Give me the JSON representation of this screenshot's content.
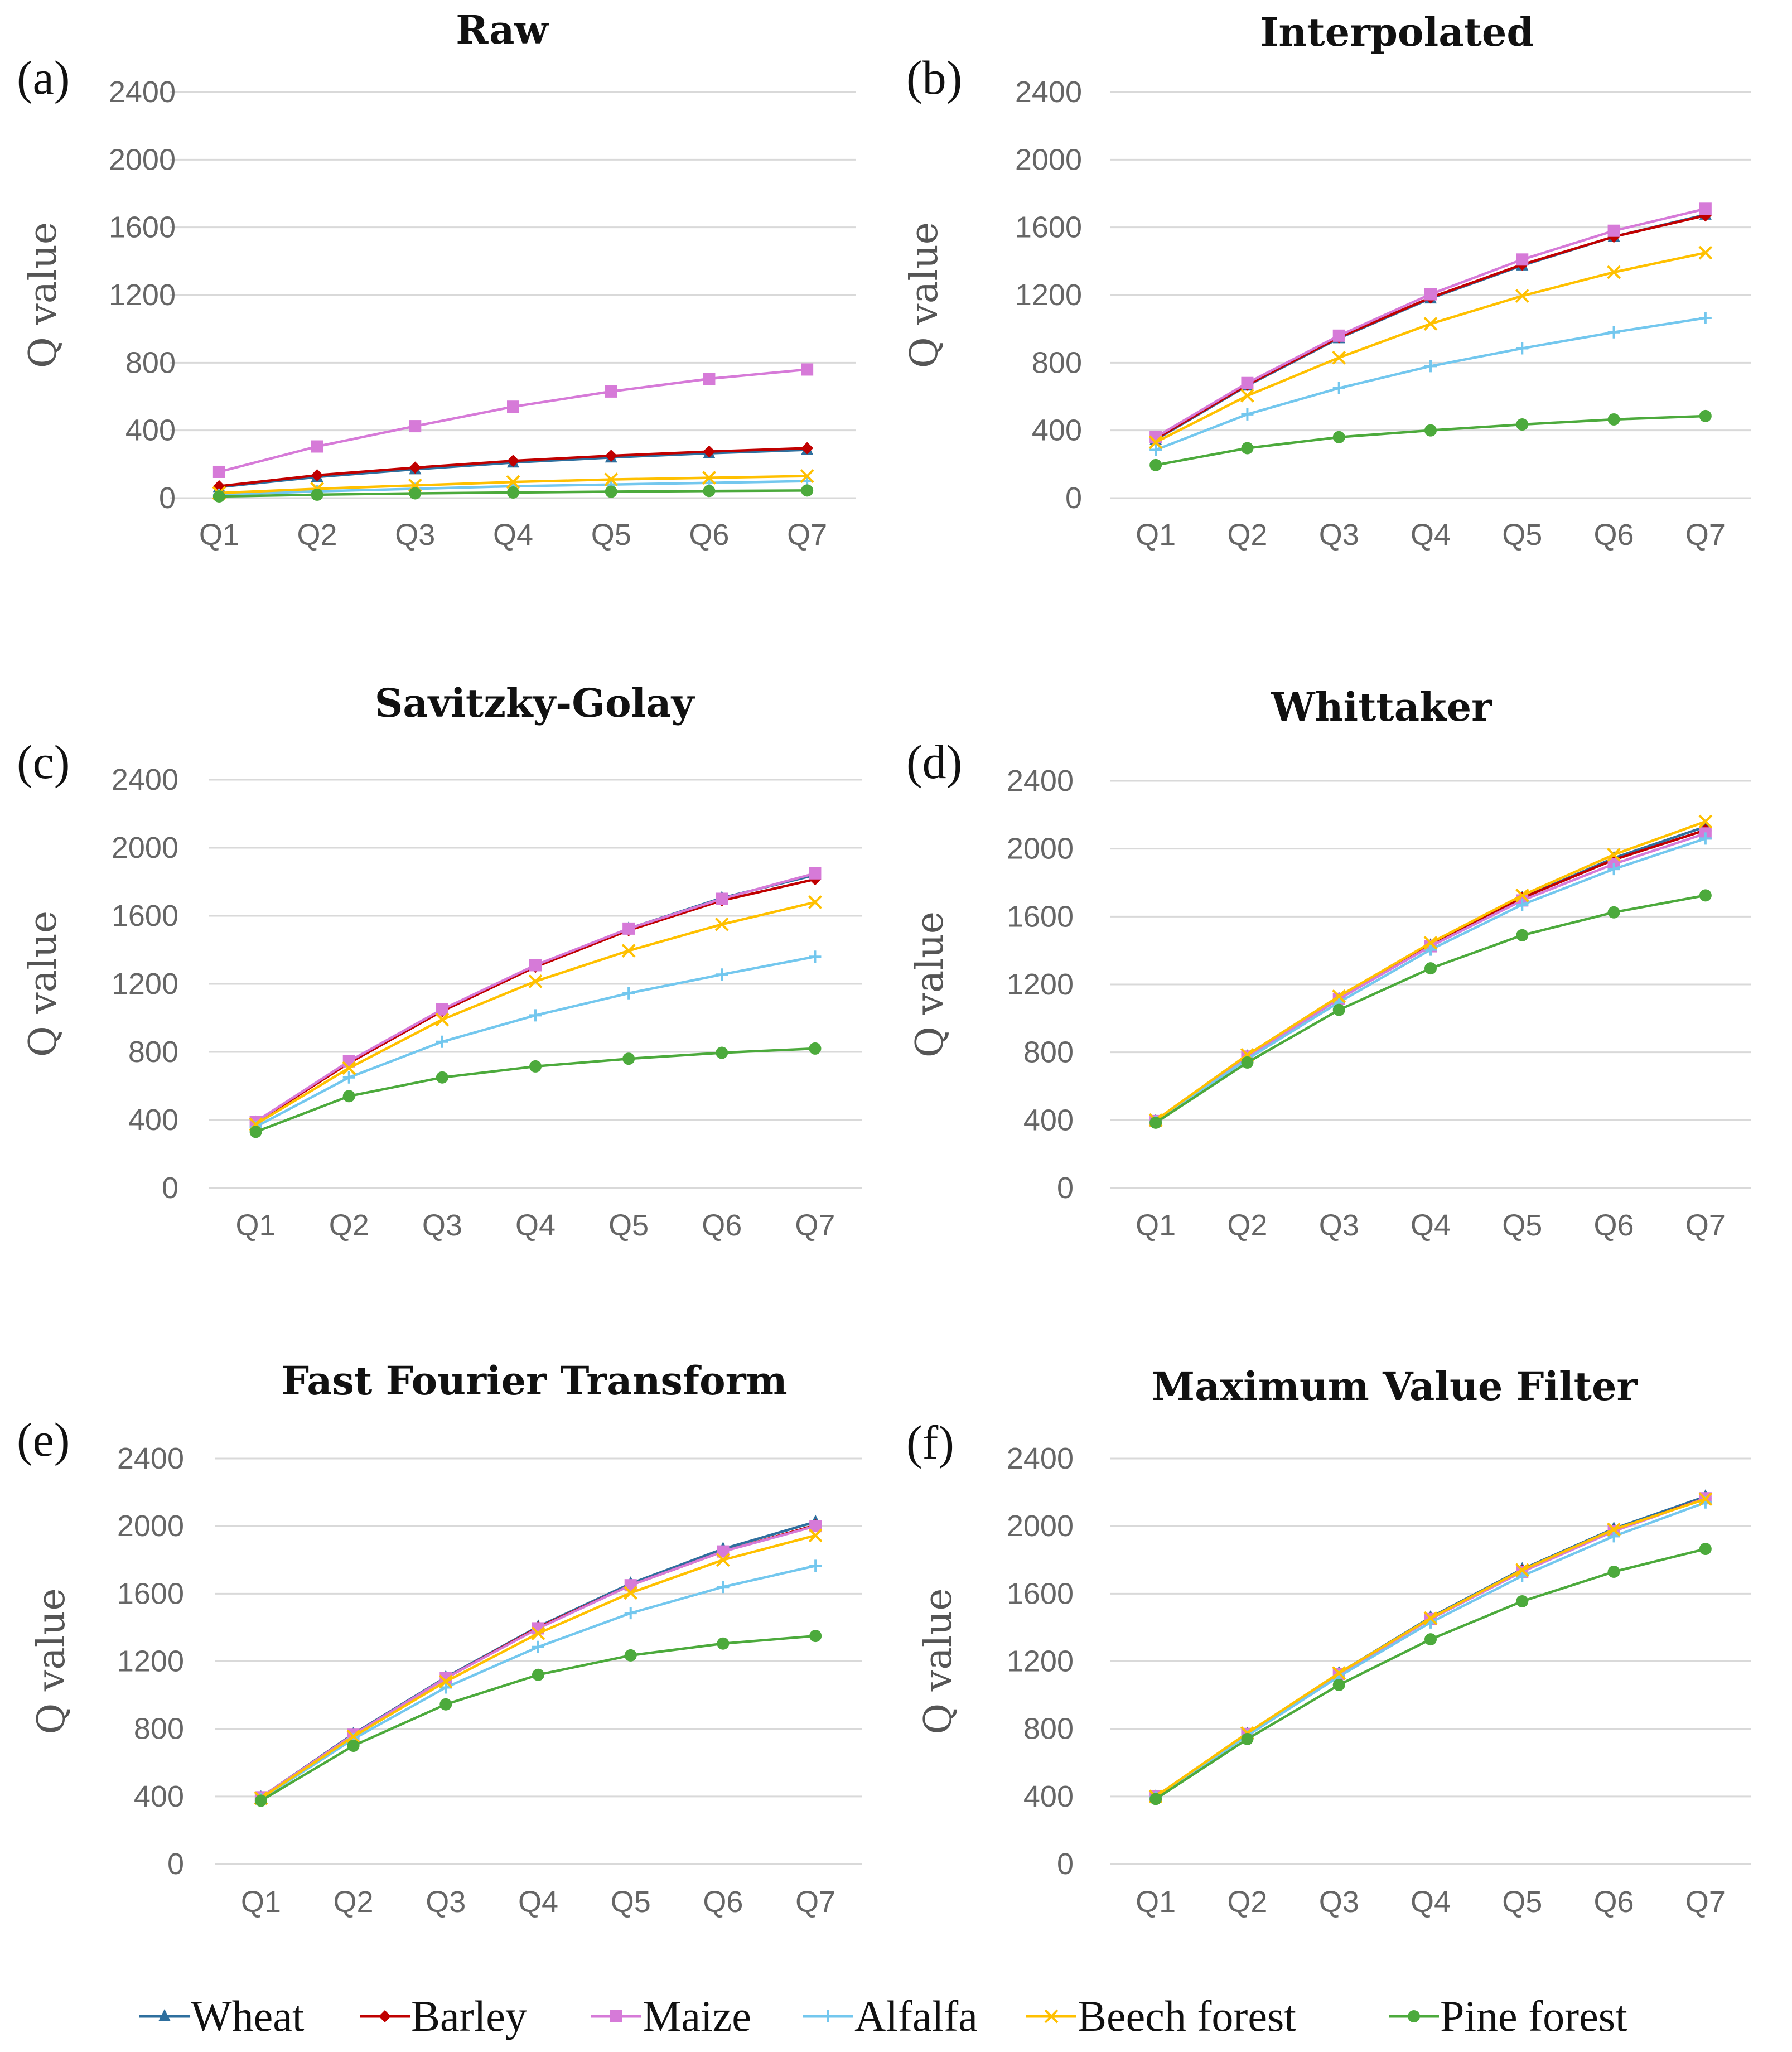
{
  "series_styles": [
    {
      "name": "Wheat",
      "color": "#2e6f9e",
      "marker": "triangle"
    },
    {
      "name": "Barley",
      "color": "#c00000",
      "marker": "diamond"
    },
    {
      "name": "Maize",
      "color": "#d67ad8",
      "marker": "square"
    },
    {
      "name": "Alfalfa",
      "color": "#73c7ee",
      "marker": "plus"
    },
    {
      "name": "Beech forest",
      "color": "#ffc000",
      "marker": "x"
    },
    {
      "name": "Pine forest",
      "color": "#4caa3c",
      "marker": "circle"
    }
  ],
  "chart_data": [
    {
      "type": "line",
      "panel": "(a)",
      "title": "Raw",
      "xlabel": "",
      "ylabel": "Q value",
      "categories": [
        "Q1",
        "Q2",
        "Q3",
        "Q4",
        "Q5",
        "Q6",
        "Q7"
      ],
      "ylim": [
        0,
        2400
      ],
      "yticks": [
        0,
        400,
        800,
        1200,
        1600,
        2000,
        2400
      ],
      "grid": true,
      "series": [
        {
          "name": "Wheat",
          "values": [
            65,
            125,
            170,
            210,
            240,
            265,
            285
          ]
        },
        {
          "name": "Barley",
          "values": [
            70,
            135,
            180,
            220,
            250,
            275,
            295
          ]
        },
        {
          "name": "Maize",
          "values": [
            155,
            305,
            425,
            540,
            630,
            705,
            760
          ]
        },
        {
          "name": "Alfalfa",
          "values": [
            20,
            40,
            55,
            70,
            80,
            90,
            100
          ]
        },
        {
          "name": "Beech forest",
          "values": [
            30,
            55,
            75,
            95,
            110,
            120,
            130
          ]
        },
        {
          "name": "Pine forest",
          "values": [
            10,
            20,
            28,
            33,
            38,
            42,
            45
          ]
        }
      ]
    },
    {
      "type": "line",
      "panel": "(b)",
      "title": "Interpolated",
      "xlabel": "",
      "ylabel": "Q value",
      "categories": [
        "Q1",
        "Q2",
        "Q3",
        "Q4",
        "Q5",
        "Q6",
        "Q7"
      ],
      "ylim": [
        0,
        2400
      ],
      "yticks": [
        0,
        400,
        800,
        1200,
        1600,
        2000,
        2400
      ],
      "grid": true,
      "series": [
        {
          "name": "Wheat",
          "values": [
            345,
            665,
            945,
            1180,
            1375,
            1545,
            1675
          ]
        },
        {
          "name": "Barley",
          "values": [
            350,
            670,
            950,
            1185,
            1380,
            1545,
            1670
          ]
        },
        {
          "name": "Maize",
          "values": [
            360,
            680,
            960,
            1205,
            1410,
            1580,
            1710
          ]
        },
        {
          "name": "Alfalfa",
          "values": [
            285,
            495,
            650,
            780,
            885,
            980,
            1065
          ]
        },
        {
          "name": "Beech forest",
          "values": [
            330,
            605,
            830,
            1030,
            1195,
            1335,
            1450
          ]
        },
        {
          "name": "Pine forest",
          "values": [
            195,
            295,
            360,
            400,
            435,
            465,
            485
          ]
        }
      ]
    },
    {
      "type": "line",
      "panel": "(c)",
      "title": "Savitzky-Golay",
      "xlabel": "",
      "ylabel": "Q value",
      "categories": [
        "Q1",
        "Q2",
        "Q3",
        "Q4",
        "Q5",
        "Q6",
        "Q7"
      ],
      "ylim": [
        0,
        2400
      ],
      "yticks": [
        0,
        400,
        800,
        1200,
        1600,
        2000,
        2400
      ],
      "grid": true,
      "series": [
        {
          "name": "Wheat",
          "values": [
            385,
            740,
            1045,
            1305,
            1525,
            1705,
            1840
          ]
        },
        {
          "name": "Barley",
          "values": [
            385,
            735,
            1040,
            1300,
            1515,
            1690,
            1815
          ]
        },
        {
          "name": "Maize",
          "values": [
            390,
            745,
            1050,
            1310,
            1525,
            1700,
            1850
          ]
        },
        {
          "name": "Alfalfa",
          "values": [
            360,
            650,
            860,
            1015,
            1145,
            1255,
            1360
          ]
        },
        {
          "name": "Beech forest",
          "values": [
            375,
            705,
            990,
            1215,
            1395,
            1550,
            1680
          ]
        },
        {
          "name": "Pine forest",
          "values": [
            330,
            540,
            650,
            715,
            760,
            795,
            820
          ]
        }
      ]
    },
    {
      "type": "line",
      "panel": "(d)",
      "title": "Whittaker",
      "xlabel": "",
      "ylabel": "Q value",
      "categories": [
        "Q1",
        "Q2",
        "Q3",
        "Q4",
        "Q5",
        "Q6",
        "Q7"
      ],
      "ylim": [
        0,
        2400
      ],
      "yticks": [
        0,
        400,
        800,
        1200,
        1600,
        2000,
        2400
      ],
      "grid": true,
      "series": [
        {
          "name": "Wheat",
          "values": [
            395,
            775,
            1115,
            1430,
            1710,
            1945,
            2130
          ]
        },
        {
          "name": "Barley",
          "values": [
            395,
            775,
            1115,
            1430,
            1710,
            1935,
            2110
          ]
        },
        {
          "name": "Maize",
          "values": [
            395,
            775,
            1115,
            1425,
            1695,
            1910,
            2090
          ]
        },
        {
          "name": "Alfalfa",
          "values": [
            390,
            760,
            1095,
            1405,
            1670,
            1880,
            2060
          ]
        },
        {
          "name": "Beech forest",
          "values": [
            400,
            785,
            1130,
            1445,
            1725,
            1965,
            2160
          ]
        },
        {
          "name": "Pine forest",
          "values": [
            385,
            740,
            1050,
            1295,
            1490,
            1625,
            1725
          ]
        }
      ]
    },
    {
      "type": "line",
      "panel": "(e)",
      "title": "Fast Fourier Transform",
      "xlabel": "",
      "ylabel": "Q value",
      "categories": [
        "Q1",
        "Q2",
        "Q3",
        "Q4",
        "Q5",
        "Q6",
        "Q7"
      ],
      "ylim": [
        0,
        2400
      ],
      "yticks": [
        0,
        400,
        800,
        1200,
        1600,
        2000,
        2400
      ],
      "grid": true,
      "series": [
        {
          "name": "Wheat",
          "values": [
            395,
            770,
            1105,
            1405,
            1660,
            1865,
            2025
          ]
        },
        {
          "name": "Barley",
          "values": [
            395,
            765,
            1100,
            1400,
            1650,
            1850,
            2005
          ]
        },
        {
          "name": "Maize",
          "values": [
            395,
            765,
            1100,
            1395,
            1650,
            1850,
            2000
          ]
        },
        {
          "name": "Alfalfa",
          "values": [
            385,
            740,
            1045,
            1285,
            1485,
            1640,
            1765
          ]
        },
        {
          "name": "Beech forest",
          "values": [
            390,
            755,
            1080,
            1365,
            1605,
            1800,
            1945
          ]
        },
        {
          "name": "Pine forest",
          "values": [
            375,
            700,
            945,
            1120,
            1235,
            1305,
            1350
          ]
        }
      ]
    },
    {
      "type": "line",
      "panel": "(f)",
      "title": "Maximum Value Filter",
      "xlabel": "",
      "ylabel": "Q value",
      "categories": [
        "Q1",
        "Q2",
        "Q3",
        "Q4",
        "Q5",
        "Q6",
        "Q7"
      ],
      "ylim": [
        0,
        2400
      ],
      "yticks": [
        0,
        400,
        800,
        1200,
        1600,
        2000,
        2400
      ],
      "grid": true,
      "series": [
        {
          "name": "Wheat",
          "values": [
            400,
            770,
            1130,
            1460,
            1745,
            1985,
            2175
          ]
        },
        {
          "name": "Barley",
          "values": [
            400,
            770,
            1125,
            1450,
            1735,
            1975,
            2165
          ]
        },
        {
          "name": "Maize",
          "values": [
            400,
            770,
            1125,
            1450,
            1730,
            1970,
            2165
          ]
        },
        {
          "name": "Alfalfa",
          "values": [
            395,
            760,
            1110,
            1430,
            1705,
            1940,
            2140
          ]
        },
        {
          "name": "Beech forest",
          "values": [
            400,
            775,
            1130,
            1455,
            1740,
            1980,
            2160
          ]
        },
        {
          "name": "Pine forest",
          "values": [
            385,
            740,
            1060,
            1330,
            1555,
            1730,
            1865
          ]
        }
      ]
    }
  ]
}
